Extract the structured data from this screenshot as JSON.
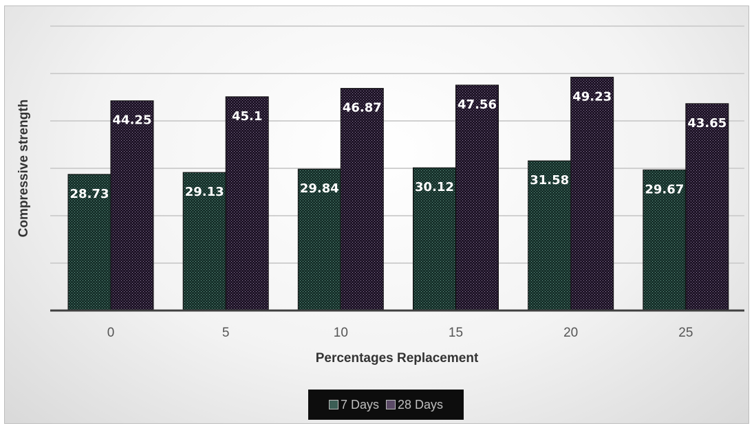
{
  "chart_data": {
    "type": "bar",
    "title": "",
    "xlabel": "Percentages Replacement",
    "ylabel": "Compressive strength",
    "categories": [
      "0",
      "5",
      "10",
      "15",
      "20",
      "25"
    ],
    "series": [
      {
        "name": "7 Days",
        "values": [
          28.73,
          29.13,
          29.84,
          30.12,
          31.58,
          29.67
        ],
        "color": "#1f3a33"
      },
      {
        "name": "28 Days",
        "values": [
          44.25,
          45.1,
          46.87,
          47.56,
          49.23,
          43.65
        ],
        "color": "#2a1c33"
      }
    ],
    "ylim": [
      0,
      60
    ],
    "grid": true,
    "legend_position": "bottom"
  }
}
